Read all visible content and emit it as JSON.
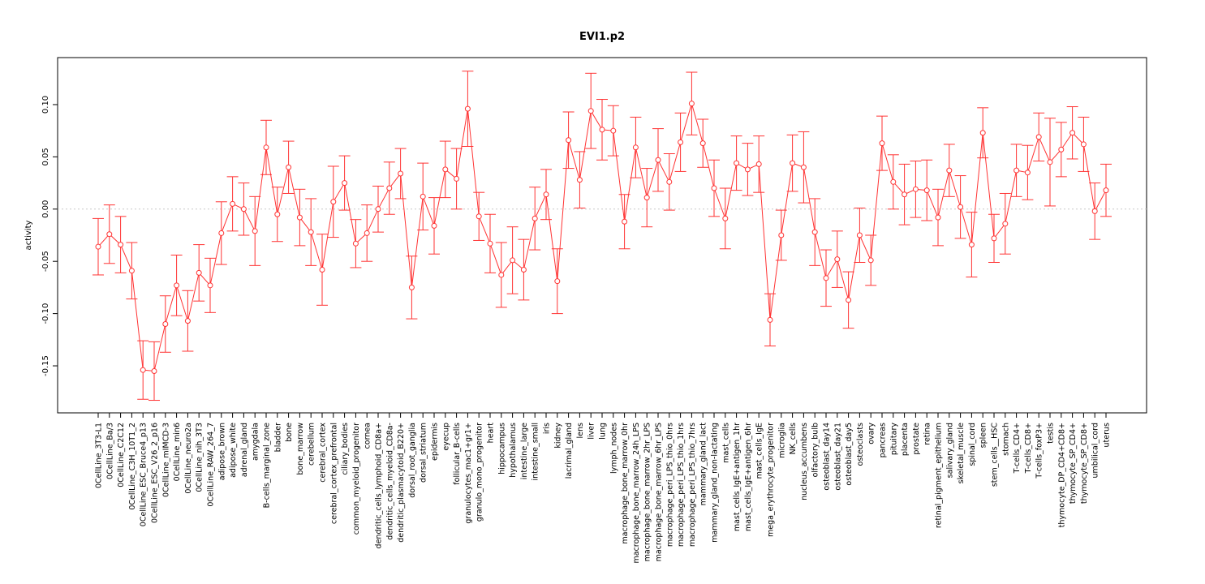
{
  "chart_data": {
    "type": "line",
    "title": "EVI1.p2",
    "xlabel": "",
    "ylabel": "activity",
    "ylim": [
      -0.195,
      0.145
    ],
    "yticks": [
      -0.15,
      -0.1,
      -0.05,
      0.0,
      0.05,
      0.1
    ],
    "ytick_labels": [
      "-0.15",
      "-0.10",
      "-0.05",
      "0.00",
      "0.05",
      "0.10"
    ],
    "reference_line": 0,
    "series_color": "#ff3333",
    "refline_color": "#c8c8c8",
    "categories": [
      "0CellLine_3T3-L1",
      "0CellLine_Ba/3",
      "0CellLine_C2C12",
      "0CellLine_C3H_10T1_2",
      "0CellLine_ESC_Bruce4_p13",
      "0CellLine_ESC_V26_2_p16",
      "0CellLine_mIMCD-3",
      "0CellLine_min6",
      "0CellLine_neuro2a",
      "0CellLine_nih_3T3",
      "0CellLine_RAW_264_7",
      "adipose_brown",
      "adipose_white",
      "adrenal_gland",
      "amygdala",
      "B-cells_marginal_zone",
      "bladder",
      "bone",
      "bone_marrow",
      "cerebellum",
      "cerebral_cortex",
      "cerebral_cortex_prefrontal",
      "ciliary_bodies",
      "common_myeloid_progenitor",
      "cornea",
      "dendritic_cells_lymphoid_CD8a+",
      "dendritic_cells_myeloid_CD8a-",
      "dendritic_plasmacytoid_B220+",
      "dorsal_root_ganglia",
      "dorsal_striatum",
      "epidermis",
      "eyecup",
      "follicular_B-cells",
      "granulocytes_mac1+gr1+",
      "granulo_mono_progenitor",
      "heart",
      "hippocampus",
      "hypothalamus",
      "intestine_large",
      "intestine_small",
      "iris",
      "kidney",
      "lacrimal_gland",
      "lens",
      "liver",
      "lung",
      "lymph_nodes",
      "macrophage_bone_marrow_0hr",
      "macrophage_bone_marrow_24h_LPS",
      "macrophage_bone_marrow_2hr_LPS",
      "macrophage_bone_marrow_6hr_LPS",
      "macrophage_peri_LPS_thio_0hrs",
      "macrophage_peri_LPS_thio_1hrs",
      "macrophage_peri_LPS_thio_7hrs",
      "mammary_gland_lact",
      "mammary_gland_non-lactating",
      "mast_cells",
      "mast_cells_IgE+antigen_1hr",
      "mast_cells_IgE+antigen_6hr",
      "mast_cells_IgE",
      "mega_erythrocyte_progenitor",
      "microglia",
      "NK_cells",
      "nucleus_accumbens",
      "olfactory_bulb",
      "osteoblast_day14",
      "osteoblast_day21",
      "osteoblast_day5",
      "osteoclasts",
      "ovary",
      "pancreas",
      "pituitary",
      "placenta",
      "prostate",
      "retina",
      "retinal_pigment_epithelium",
      "salivary_gland",
      "skeletal_muscle",
      "spinal_cord",
      "spleen",
      "stem_cells__HSC",
      "stomach",
      "T-cells_CD4+",
      "T-cells_CD8+",
      "T-cells_foxP3+",
      "testis",
      "thymocyte_DP_CD4+CD8+",
      "thymocyte_SP_CD4+",
      "thymocyte_SP_CD8+",
      "umbilical_cord",
      "uterus"
    ],
    "values": [
      -0.036,
      -0.024,
      -0.034,
      -0.059,
      -0.154,
      -0.155,
      -0.11,
      -0.073,
      -0.107,
      -0.061,
      -0.073,
      -0.023,
      0.005,
      0.0,
      -0.021,
      0.059,
      -0.005,
      0.04,
      -0.008,
      -0.022,
      -0.058,
      0.007,
      0.025,
      -0.033,
      -0.023,
      0.0,
      0.02,
      0.034,
      -0.075,
      0.012,
      -0.016,
      0.038,
      0.029,
      0.096,
      -0.007,
      -0.033,
      -0.063,
      -0.049,
      -0.058,
      -0.009,
      0.014,
      -0.069,
      0.066,
      0.028,
      0.094,
      0.076,
      0.075,
      -0.012,
      0.059,
      0.011,
      0.047,
      0.026,
      0.064,
      0.101,
      0.063,
      0.02,
      -0.009,
      0.044,
      0.038,
      0.043,
      -0.106,
      -0.025,
      0.044,
      0.04,
      -0.022,
      -0.066,
      -0.048,
      -0.087,
      -0.025,
      -0.049,
      0.063,
      0.026,
      0.014,
      0.019,
      0.018,
      -0.008,
      0.037,
      0.002,
      -0.034,
      0.073,
      -0.028,
      -0.014,
      0.037,
      0.035,
      0.069,
      0.045,
      0.057,
      0.073,
      0.062,
      -0.002,
      0.018
    ],
    "errors": [
      0.027,
      0.028,
      0.027,
      0.027,
      0.028,
      0.028,
      0.027,
      0.029,
      0.029,
      0.027,
      0.026,
      0.03,
      0.026,
      0.025,
      0.033,
      0.026,
      0.026,
      0.025,
      0.027,
      0.032,
      0.034,
      0.034,
      0.026,
      0.023,
      0.027,
      0.022,
      0.025,
      0.024,
      0.03,
      0.032,
      0.027,
      0.027,
      0.029,
      0.036,
      0.023,
      0.028,
      0.031,
      0.032,
      0.029,
      0.03,
      0.024,
      0.031,
      0.027,
      0.027,
      0.036,
      0.029,
      0.024,
      0.026,
      0.029,
      0.028,
      0.03,
      0.027,
      0.028,
      0.03,
      0.023,
      0.027,
      0.029,
      0.026,
      0.025,
      0.027,
      0.025,
      0.024,
      0.027,
      0.034,
      0.032,
      0.027,
      0.027,
      0.027,
      0.026,
      0.024,
      0.026,
      0.026,
      0.029,
      0.027,
      0.029,
      0.027,
      0.025,
      0.03,
      0.031,
      0.024,
      0.023,
      0.029,
      0.025,
      0.026,
      0.023,
      0.042,
      0.026,
      0.025,
      0.026,
      0.027,
      0.025
    ]
  }
}
